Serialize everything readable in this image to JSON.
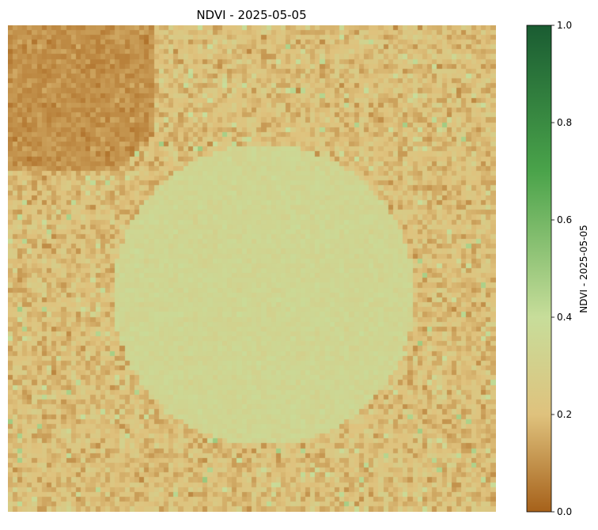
{
  "chart_data": {
    "type": "heatmap",
    "title": "NDVI - 2025-05-05",
    "xlabel": "",
    "ylabel": "",
    "axes_visible": false,
    "grid": false,
    "colormap": {
      "name": "brown-tan-green",
      "stops": [
        {
          "value": 0.0,
          "color": "#a6611a"
        },
        {
          "value": 0.2,
          "color": "#dfc27d"
        },
        {
          "value": 0.4,
          "color": "#c7dd9a"
        },
        {
          "value": 0.7,
          "color": "#4aa34a"
        },
        {
          "value": 1.0,
          "color": "#1a5c32"
        }
      ]
    },
    "colorbar": {
      "label": "NDVI - 2025-05-05",
      "range": [
        0,
        1
      ],
      "ticks": [
        "0.0",
        "0.2",
        "0.4",
        "0.6",
        "0.8",
        "1.0"
      ],
      "placement": "right"
    },
    "grid_size": [
      100,
      100
    ],
    "regions": [
      {
        "name": "background field",
        "mean_ndvi": 0.2,
        "noise": 0.09
      },
      {
        "name": "top-left block",
        "mean_ndvi": 0.1,
        "noise": 0.05
      },
      {
        "name": "central circle",
        "mean_ndvi": 0.34,
        "noise": 0.035
      }
    ]
  }
}
